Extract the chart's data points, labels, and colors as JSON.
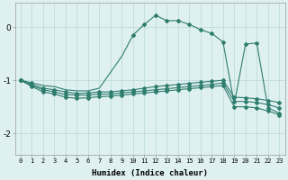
{
  "xlabel": "Humidex (Indice chaleur)",
  "background_color": "#dff0f0",
  "grid_color": "#b8d8d8",
  "line_color": "#2e7d6e",
  "xlim": [
    -0.5,
    23.5
  ],
  "ylim": [
    -2.4,
    0.45
  ],
  "yticks": [
    -2,
    -1,
    0
  ],
  "xticks": [
    0,
    1,
    2,
    3,
    4,
    5,
    6,
    7,
    8,
    9,
    10,
    11,
    12,
    13,
    14,
    15,
    16,
    17,
    18,
    19,
    20,
    21,
    22,
    23
  ],
  "y_top": [
    -1.0,
    -1.05,
    -1.1,
    -1.12,
    -1.18,
    -1.2,
    -1.2,
    -1.15,
    -0.85,
    -0.55,
    -0.15,
    0.05,
    0.22,
    0.12,
    0.12,
    0.05,
    -0.05,
    -0.12,
    -0.28,
    -1.45,
    -0.32,
    -0.3,
    -1.52,
    -1.62
  ],
  "y_mid1": [
    -1.0,
    -1.08,
    -1.15,
    -1.18,
    -1.22,
    -1.25,
    -1.24,
    -1.22,
    -1.22,
    -1.2,
    -1.18,
    -1.15,
    -1.12,
    -1.1,
    -1.08,
    -1.06,
    -1.04,
    -1.02,
    -1.0,
    -1.32,
    -1.33,
    -1.35,
    -1.38,
    -1.42
  ],
  "y_mid2": [
    -1.0,
    -1.1,
    -1.18,
    -1.22,
    -1.27,
    -1.28,
    -1.28,
    -1.26,
    -1.26,
    -1.24,
    -1.22,
    -1.2,
    -1.18,
    -1.16,
    -1.14,
    -1.12,
    -1.1,
    -1.08,
    -1.05,
    -1.4,
    -1.4,
    -1.42,
    -1.46,
    -1.52
  ],
  "y_low": [
    -1.0,
    -1.12,
    -1.22,
    -1.26,
    -1.32,
    -1.34,
    -1.33,
    -1.31,
    -1.3,
    -1.28,
    -1.26,
    -1.24,
    -1.22,
    -1.2,
    -1.18,
    -1.16,
    -1.14,
    -1.12,
    -1.1,
    -1.5,
    -1.5,
    -1.52,
    -1.58,
    -1.65
  ],
  "marks_top": [
    0,
    1,
    10,
    11,
    12,
    13,
    14,
    15,
    16,
    17,
    18,
    20,
    21,
    22,
    23
  ],
  "marks_mid1": [
    0,
    1,
    2,
    3,
    4,
    5,
    6,
    7,
    8,
    9,
    10,
    11,
    12,
    13,
    14,
    15,
    16,
    17,
    18,
    19,
    20,
    21,
    22,
    23
  ],
  "marks_mid2": [
    0,
    1,
    2,
    3,
    4,
    5,
    6,
    7,
    8,
    9,
    10,
    11,
    12,
    13,
    14,
    15,
    16,
    17,
    18,
    19,
    20,
    21,
    22,
    23
  ],
  "marks_low": [
    0,
    1,
    2,
    3,
    4,
    5,
    6,
    7,
    8,
    9,
    10,
    11,
    12,
    13,
    14,
    15,
    16,
    17,
    18,
    19,
    20,
    21,
    22,
    23
  ]
}
